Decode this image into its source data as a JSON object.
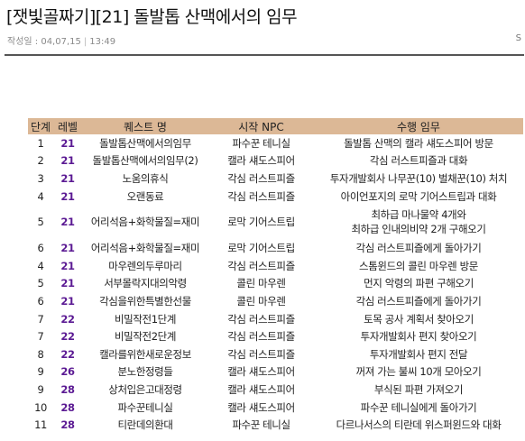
{
  "post": {
    "title": "[잿빛골짜기][21] 돌발톱 산맥에서의 임무",
    "meta_label": "작성일 : ",
    "date": "04,07,15",
    "time": "13:49",
    "right_mark": "S"
  },
  "table": {
    "headers": [
      "단계",
      "레벨",
      "퀘스트 명",
      "시작 NPC",
      "수행 임무"
    ],
    "rows": [
      {
        "step": "1",
        "level": "21",
        "quest": "돌발톱산맥에서의임무",
        "npc": "파수꾼 테니실",
        "task": [
          "돌발톱 산맥의 캘라 섀도스피어 방문"
        ]
      },
      {
        "step": "2",
        "level": "21",
        "quest": "돌발톱산맥에서의임무(2)",
        "npc": "캘라 섀도스피어",
        "task": [
          "각심 러스트피즐과 대화"
        ]
      },
      {
        "step": "3",
        "level": "21",
        "quest": "노움의휴식",
        "npc": "각심 러스트피즐",
        "task": [
          "투자개발회사 나무꾼(10) 벌채꾼(10) 처치"
        ]
      },
      {
        "step": "4",
        "level": "21",
        "quest": "오랜동료",
        "npc": "각심 러스트피즐",
        "task": [
          "아이언포지의 로막 기어스트립과 대화"
        ]
      },
      {
        "step": "5",
        "level": "21",
        "quest": "어리석음+화학물질=재미",
        "npc": "로막 기어스트립",
        "task": [
          "최하급 마나물약 4개와",
          "최하급 인내의비약 2개 구해오기"
        ]
      },
      {
        "step": "6",
        "level": "21",
        "quest": "어리석음+화학물질=재미",
        "npc": "로막 기어스트립",
        "task": [
          "각심 러스트피즐에게 돌아가기"
        ]
      },
      {
        "step": "4",
        "level": "21",
        "quest": "마우렌의두루마리",
        "npc": "각심 러스트피즐",
        "task": [
          "스톰윈드의 콜린 마우렌 방문"
        ]
      },
      {
        "step": "5",
        "level": "21",
        "quest": "서부몰락지대의악령",
        "npc": "콜린 마우렌",
        "task": [
          "먼지 악령의 파편 구해오기"
        ]
      },
      {
        "step": "6",
        "level": "21",
        "quest": "각심을위한특별한선물",
        "npc": "콜린 마우렌",
        "task": [
          "각심 러스트피즐에게 돌아가기"
        ]
      },
      {
        "step": "7",
        "level": "22",
        "quest": "비밀작전1단계",
        "npc": "각심 러스트피즐",
        "task": [
          "토목 공사 계획서 찾아오기"
        ]
      },
      {
        "step": "7",
        "level": "22",
        "quest": "비밀작전2단계",
        "npc": "각심 러스트피즐",
        "task": [
          "투자개발회사 편지 찾아오기"
        ]
      },
      {
        "step": "8",
        "level": "22",
        "quest": "캘라를위한새로운정보",
        "npc": "각심 러스트피즐",
        "task": [
          "투자개발회사 편지 전달"
        ]
      },
      {
        "step": "9",
        "level": "26",
        "quest": "분노한정령들",
        "npc": "캘라 섀도스피어",
        "task": [
          "꺼져 가는 불씨 10개 모아오기"
        ]
      },
      {
        "step": "9",
        "level": "28",
        "quest": "상처입은고대정령",
        "npc": "캘라 섀도스피어",
        "task": [
          "부식된 파편 가져오기"
        ]
      },
      {
        "step": "10",
        "level": "28",
        "quest": "파수꾼테니실",
        "npc": "캘라 섀도스피어",
        "task": [
          "파수꾼 테니실에게 돌아가기"
        ]
      },
      {
        "step": "11",
        "level": "28",
        "quest": "티란데의환대",
        "npc": "파수꾼 테니실",
        "task": [
          "다르나서스의 티란데 위스퍼윈드와 대화"
        ]
      }
    ]
  }
}
